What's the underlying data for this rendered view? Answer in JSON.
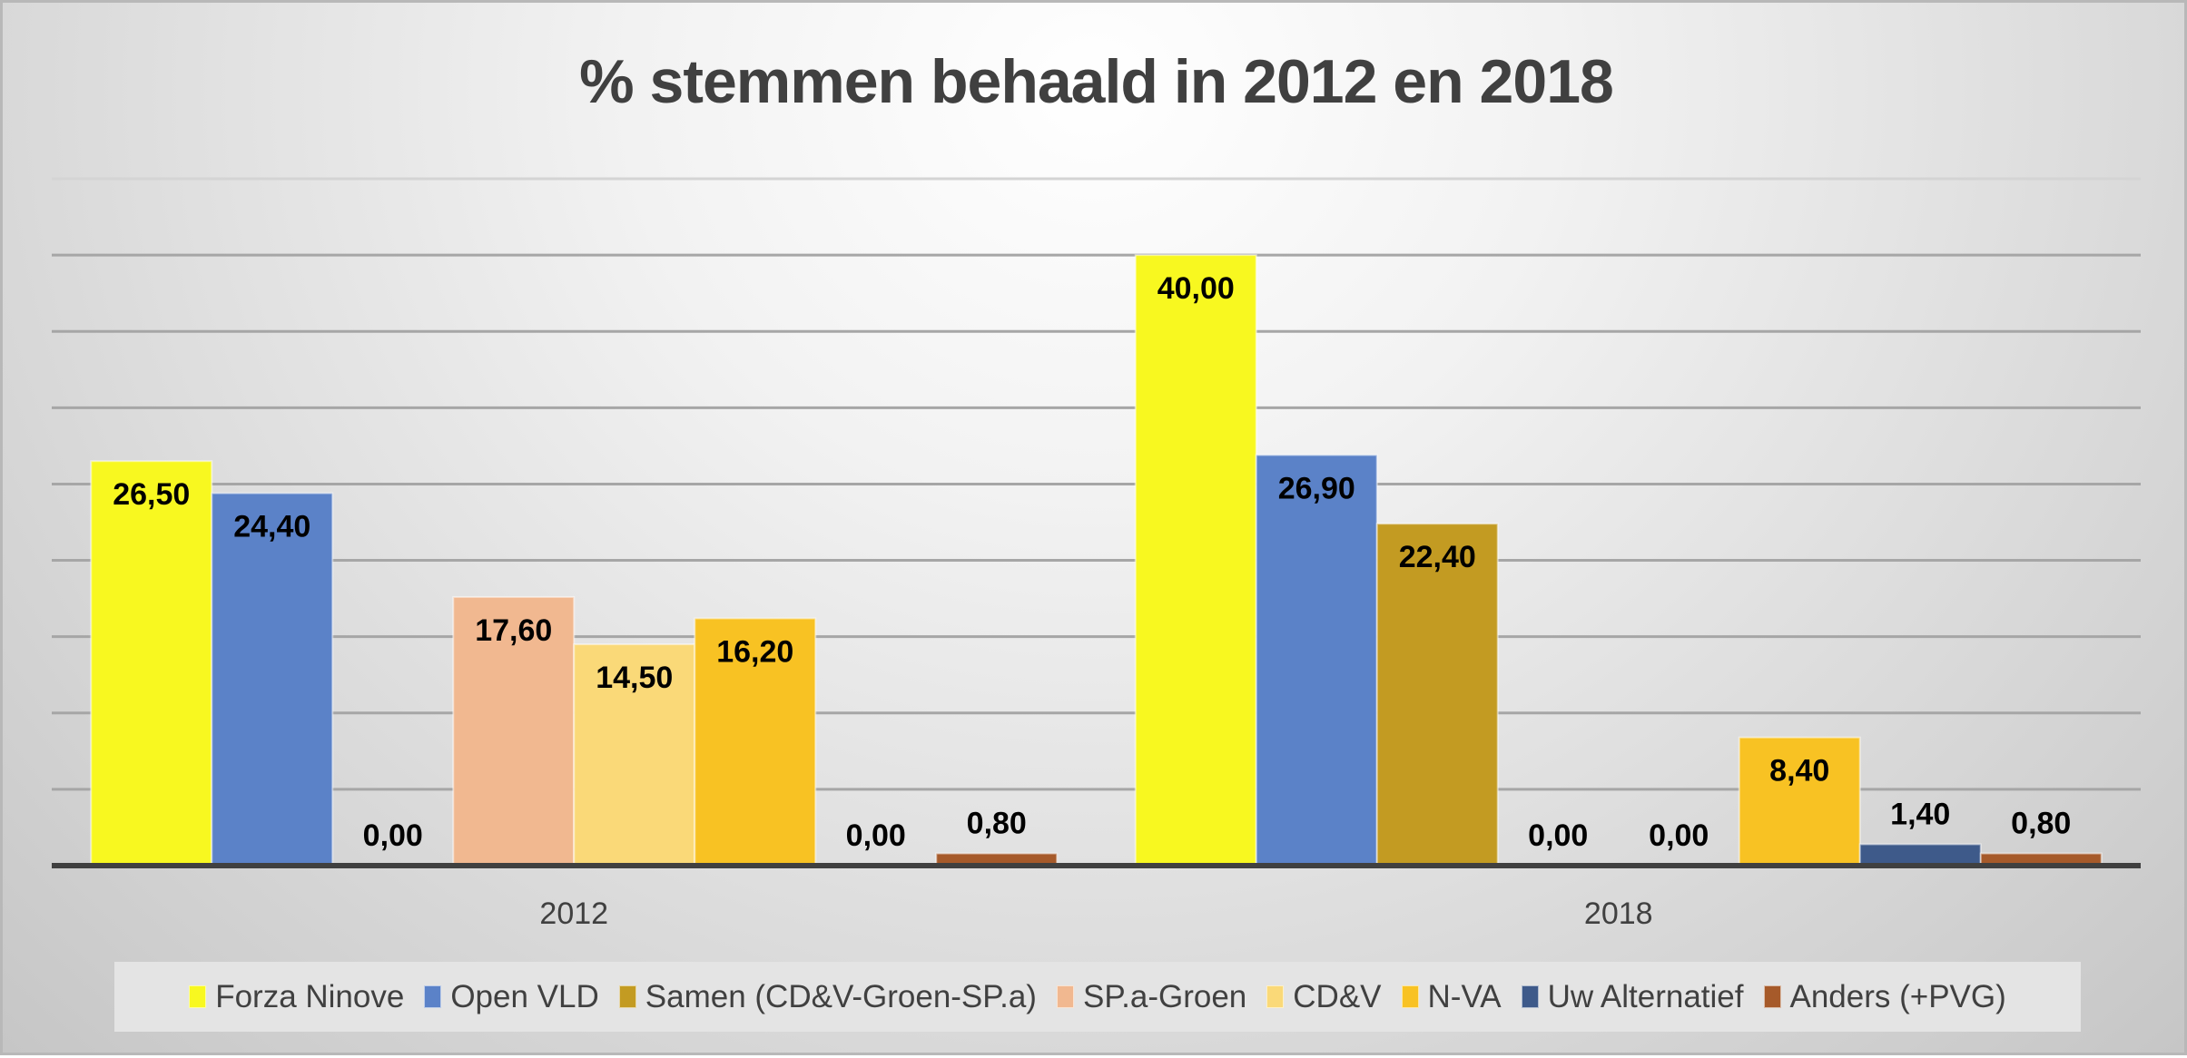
{
  "chart_data": {
    "type": "bar",
    "title": "% stemmen behaald in 2012 en 2018",
    "xlabel": "",
    "ylabel": "",
    "ylim": [
      0,
      45
    ],
    "grid_step": 5,
    "grid": true,
    "legend_position": "bottom",
    "categories": [
      "2012",
      "2018"
    ],
    "series": [
      {
        "name": "Forza Ninove",
        "color": "#F8F820",
        "values": [
          26.5,
          40.0
        ],
        "labels": [
          "26,50",
          "40,00"
        ]
      },
      {
        "name": "Open VLD",
        "color": "#5B82C8",
        "values": [
          24.4,
          26.9
        ],
        "labels": [
          "24,40",
          "26,90"
        ]
      },
      {
        "name": "Samen (CD&V-Groen-SP.a)",
        "color": "#C39B22",
        "values": [
          0.0,
          22.4
        ],
        "labels": [
          "0,00",
          "22,40"
        ]
      },
      {
        "name": "SP.a-Groen",
        "color": "#F1B890",
        "values": [
          17.6,
          0.0
        ],
        "labels": [
          "17,60",
          "0,00"
        ]
      },
      {
        "name": "CD&V",
        "color": "#FAD978",
        "values": [
          14.5,
          0.0
        ],
        "labels": [
          "14,50",
          "0,00"
        ]
      },
      {
        "name": "N-VA",
        "color": "#F8C223",
        "values": [
          16.2,
          8.4
        ],
        "labels": [
          "16,20",
          "8,40"
        ]
      },
      {
        "name": "Uw Alternatief",
        "color": "#3E5A8A",
        "values": [
          0.0,
          1.4
        ],
        "labels": [
          "0,00",
          "1,40"
        ]
      },
      {
        "name": "Anders (+PVG)",
        "color": "#A65A2A",
        "values": [
          0.8,
          0.8
        ],
        "labels": [
          "0,80",
          "0,80"
        ]
      }
    ]
  }
}
